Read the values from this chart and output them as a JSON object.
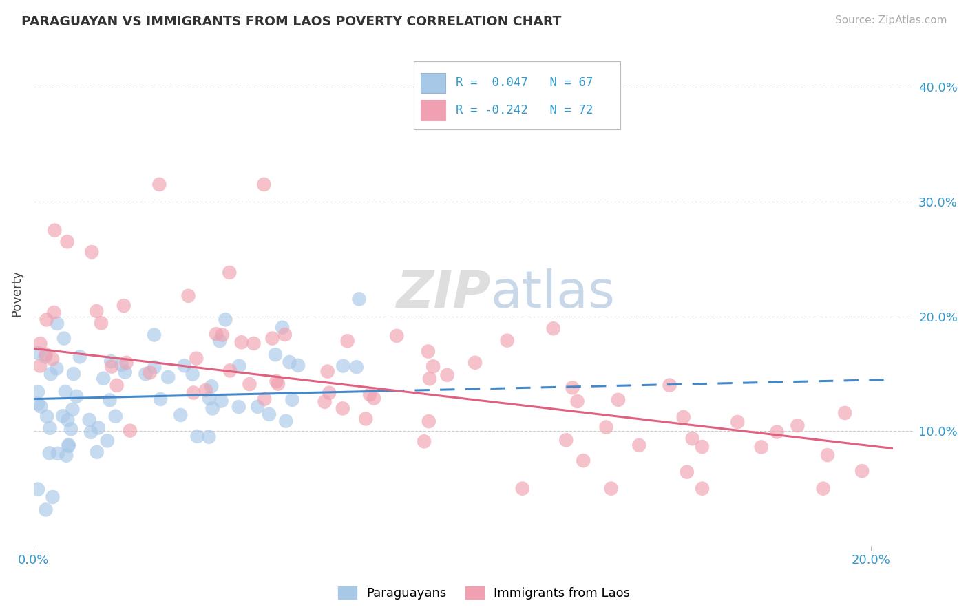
{
  "title": "PARAGUAYAN VS IMMIGRANTS FROM LAOS POVERTY CORRELATION CHART",
  "source": "Source: ZipAtlas.com",
  "ylabel": "Poverty",
  "color_blue": "#A8C8E8",
  "color_pink": "#F0A0B0",
  "color_blue_line": "#4488CC",
  "color_pink_line": "#E06080",
  "color_tick": "#3399CC",
  "background_color": "#FFFFFF",
  "watermark_text": "ZIPatlas",
  "watermark_color": "#ECECEC",
  "legend_box_color": "#CCCCCC",
  "grid_color": "#E0E0E0",
  "grid_dash_color": "#CCCCCC"
}
